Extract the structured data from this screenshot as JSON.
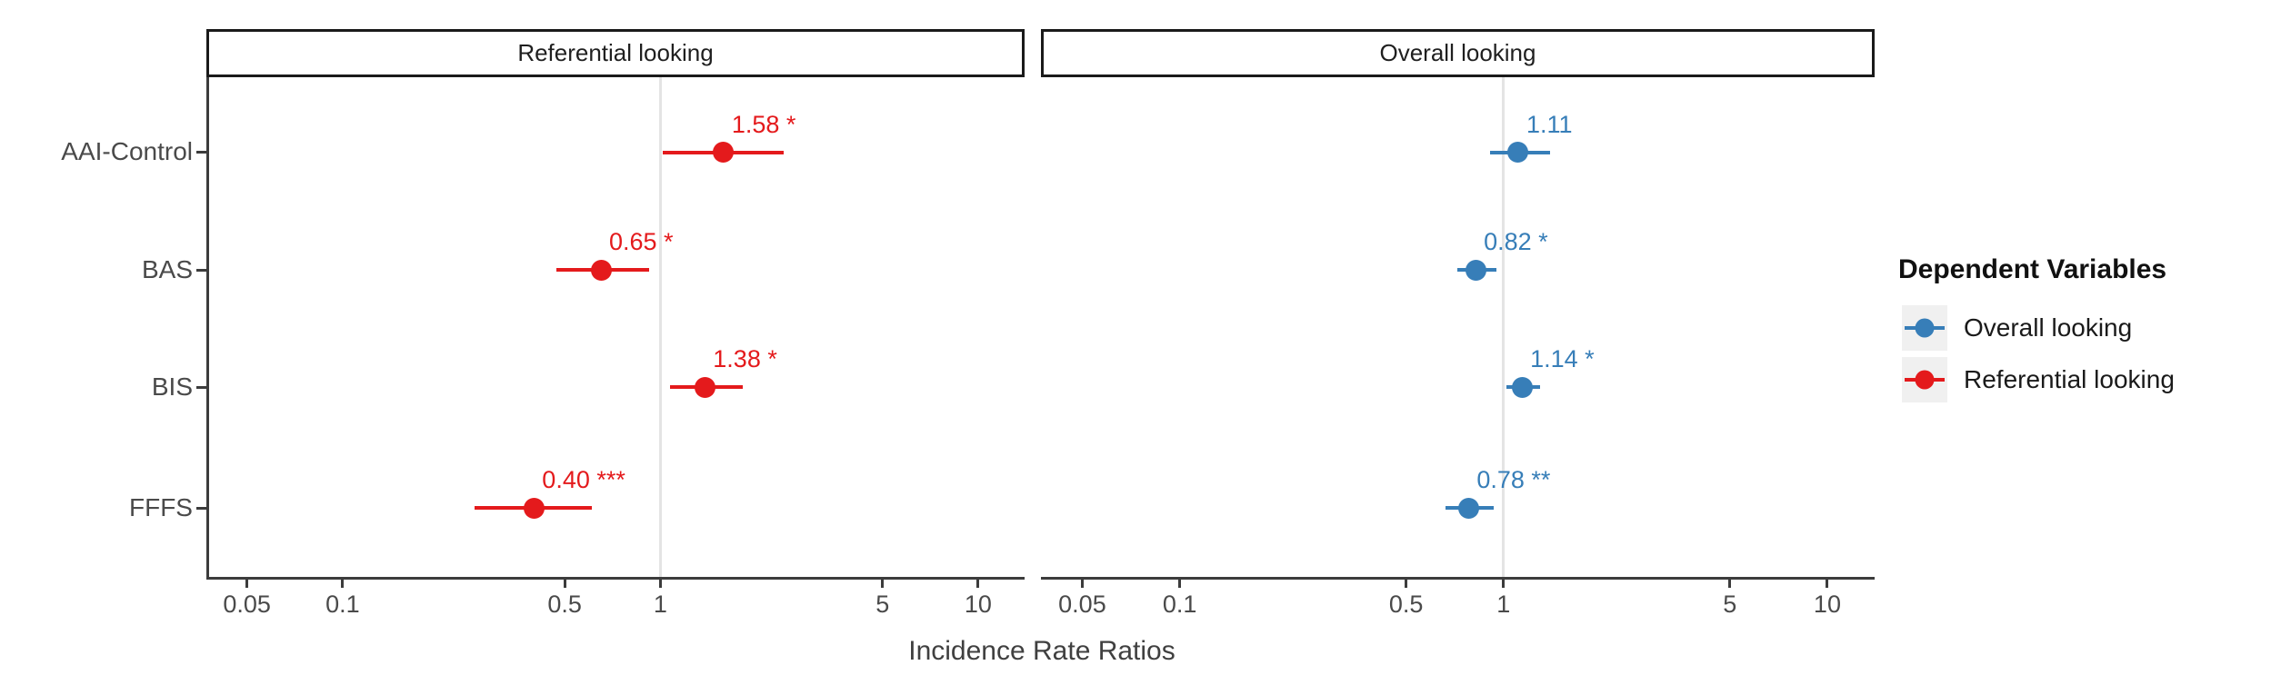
{
  "chart_data": {
    "type": "scatter",
    "subtype": "forest-dot-whisker",
    "categories": [
      "AAI-Control",
      "BAS",
      "BIS",
      "FFFS"
    ],
    "x_axis": {
      "label": "Incidence Rate Ratios",
      "scale": "log10",
      "ticks": [
        0.05,
        0.1,
        0.5,
        1,
        5,
        10
      ],
      "tick_labels": [
        "0.05",
        "0.1",
        "0.5",
        "1",
        "5",
        "10"
      ],
      "domain": [
        0.038,
        14
      ],
      "reference_line": 1
    },
    "grid": "single light reference line at x=1, white background",
    "panels": [
      {
        "title": "Referential looking",
        "series": "Referential looking",
        "color": "#e41a1c",
        "points": [
          {
            "category": "AAI-Control",
            "value": 1.58,
            "ci_low": 1.02,
            "ci_high": 2.45,
            "label": "1.58",
            "sig": "*"
          },
          {
            "category": "BAS",
            "value": 0.65,
            "ci_low": 0.47,
            "ci_high": 0.92,
            "label": "0.65",
            "sig": "*"
          },
          {
            "category": "BIS",
            "value": 1.38,
            "ci_low": 1.07,
            "ci_high": 1.82,
            "label": "1.38",
            "sig": "*"
          },
          {
            "category": "FFFS",
            "value": 0.4,
            "ci_low": 0.26,
            "ci_high": 0.61,
            "label": "0.40",
            "sig": "***"
          }
        ]
      },
      {
        "title": "Overall looking",
        "series": "Overall looking",
        "color": "#377eb8",
        "points": [
          {
            "category": "AAI-Control",
            "value": 1.11,
            "ci_low": 0.91,
            "ci_high": 1.39,
            "label": "1.11",
            "sig": ""
          },
          {
            "category": "BAS",
            "value": 0.82,
            "ci_low": 0.72,
            "ci_high": 0.95,
            "label": "0.82",
            "sig": "*"
          },
          {
            "category": "BIS",
            "value": 1.14,
            "ci_low": 1.02,
            "ci_high": 1.3,
            "label": "1.14",
            "sig": "*"
          },
          {
            "category": "FFFS",
            "value": 0.78,
            "ci_low": 0.66,
            "ci_high": 0.93,
            "label": "0.78",
            "sig": "**"
          }
        ]
      }
    ],
    "legend": {
      "title": "Dependent Variables",
      "position": "right",
      "entries": [
        {
          "label": "Overall looking",
          "color": "#377eb8"
        },
        {
          "label": "Referential looking",
          "color": "#e41a1c"
        }
      ]
    },
    "colors": {
      "red": "#e41a1c",
      "blue": "#377eb8",
      "gridline": "#e4e4e4",
      "axis_line": "#3c3c3c",
      "axis_text": "#4a4a4a",
      "strip_border": "#1a1a1a",
      "legend_key_bg": "#f0f0f0"
    }
  }
}
